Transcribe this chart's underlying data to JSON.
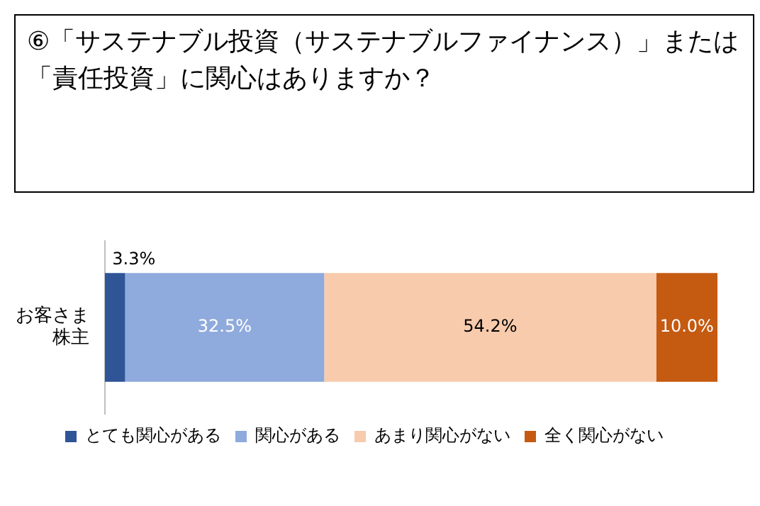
{
  "chart_data": {
    "type": "bar",
    "title": "⑥「サステナブル投資（サステナブルファイナンス）」または「責任投資」に関心はありますか？",
    "orientation": "horizontal",
    "stacked": true,
    "categories": [
      "お客さま株主"
    ],
    "legend": "bottom",
    "series": [
      {
        "name": "とても関心がある",
        "color": "#2f5597",
        "values": [
          3.3
        ],
        "value_labels": [
          "3.3%"
        ]
      },
      {
        "name": "関心がある",
        "color": "#8faadc",
        "values": [
          32.5
        ],
        "value_labels": [
          "32.5%"
        ]
      },
      {
        "name": "あまり関心がない",
        "color": "#f8cbad",
        "values": [
          54.2
        ],
        "value_labels": [
          "54.2%"
        ]
      },
      {
        "name": "全く関心がない",
        "color": "#c55a11",
        "values": [
          10.0
        ],
        "value_labels": [
          "10.0%"
        ]
      }
    ]
  }
}
